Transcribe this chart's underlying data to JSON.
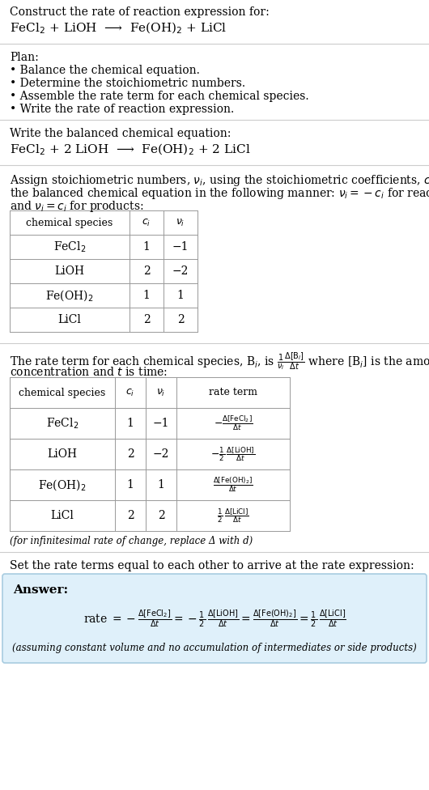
{
  "title_text": "Construct the rate of reaction expression for:",
  "reaction_unbalanced": "FeCl$_2$ + LiOH  ⟶  Fe(OH)$_2$ + LiCl",
  "plan_title": "Plan:",
  "plan_items": [
    "• Balance the chemical equation.",
    "• Determine the stoichiometric numbers.",
    "• Assemble the rate term for each chemical species.",
    "• Write the rate of reaction expression."
  ],
  "balanced_label": "Write the balanced chemical equation:",
  "reaction_balanced": "FeCl$_2$ + 2 LiOH  ⟶  Fe(OH)$_2$ + 2 LiCl",
  "stoich_intro_line1": "Assign stoichiometric numbers, $\\nu_i$, using the stoichiometric coefficients, $c_i$, from",
  "stoich_intro_line2": "the balanced chemical equation in the following manner: $\\nu_i = -c_i$ for reactants",
  "stoich_intro_line3": "and $\\nu_i = c_i$ for products:",
  "table1_headers": [
    "chemical species",
    "$c_i$",
    "$\\nu_i$"
  ],
  "table1_rows": [
    [
      "FeCl$_2$",
      "1",
      "−1"
    ],
    [
      "LiOH",
      "2",
      "−2"
    ],
    [
      "Fe(OH)$_2$",
      "1",
      "1"
    ],
    [
      "LiCl",
      "2",
      "2"
    ]
  ],
  "rate_intro_line1": "The rate term for each chemical species, B$_i$, is $\\frac{1}{\\nu_i}\\frac{\\Delta[\\mathrm{B}_i]}{\\Delta t}$ where [B$_i$] is the amount",
  "rate_intro_line2": "concentration and $t$ is time:",
  "table2_headers": [
    "chemical species",
    "$c_i$",
    "$\\nu_i$",
    "rate term"
  ],
  "table2_rows": [
    [
      "FeCl$_2$",
      "1",
      "−1",
      "$-\\frac{\\Delta[\\mathrm{FeCl_2}]}{\\Delta t}$"
    ],
    [
      "LiOH",
      "2",
      "−2",
      "$-\\frac{1}{2}\\,\\frac{\\Delta[\\mathrm{LiOH}]}{\\Delta t}$"
    ],
    [
      "Fe(OH)$_2$",
      "1",
      "1",
      "$\\frac{\\Delta[\\mathrm{Fe(OH)_2}]}{\\Delta t}$"
    ],
    [
      "LiCl",
      "2",
      "2",
      "$\\frac{1}{2}\\,\\frac{\\Delta[\\mathrm{LiCl}]}{\\Delta t}$"
    ]
  ],
  "infinitesimal_note": "(for infinitesimal rate of change, replace Δ with d)",
  "rate_expr_intro": "Set the rate terms equal to each other to arrive at the rate expression:",
  "answer_label": "Answer:",
  "answer_box_color": "#dff0fa",
  "answer_border_color": "#a8cce0",
  "assuming_note": "(assuming constant volume and no accumulation of intermediates or side products)",
  "bg_color": "#ffffff",
  "text_color": "#000000",
  "table_line_color": "#999999",
  "sep_line_color": "#cccccc"
}
